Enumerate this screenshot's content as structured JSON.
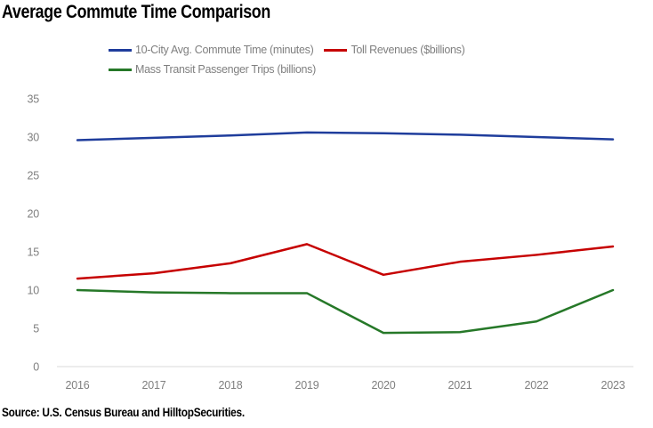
{
  "title": "Average Commute Time Comparison",
  "source_note": "Source: U.S. Census Bureau and HilltopSecurities.",
  "colors": {
    "commute_line": "#1f3d9c",
    "toll_line": "#c60000",
    "transit_line": "#267828",
    "axis_text": "#7f7f7f",
    "axis_line": "#d8d8d8",
    "title_text": "#000000"
  },
  "legend": [
    {
      "label": "10-City Avg. Commute Time (minutes)",
      "color": "#1f3d9c"
    },
    {
      "label": "Toll Revenues ($billions)",
      "color": "#c60000"
    },
    {
      "label": "Mass Transit Passenger Trips (billions)",
      "color": "#267828"
    }
  ],
  "chart_data": {
    "type": "line",
    "title": "Average Commute Time Comparison",
    "x": [
      "2016",
      "2017",
      "2018",
      "2019",
      "2020",
      "2021",
      "2022",
      "2023"
    ],
    "series": [
      {
        "name": "10-City Avg. Commute Time (minutes)",
        "color": "#1f3d9c",
        "values": [
          29.6,
          29.9,
          30.2,
          30.6,
          30.5,
          30.3,
          30.0,
          29.7
        ]
      },
      {
        "name": "Toll Revenues ($billions)",
        "color": "#c60000",
        "values": [
          11.5,
          12.2,
          13.5,
          16.0,
          12.0,
          13.7,
          14.6,
          15.7
        ]
      },
      {
        "name": "Mass Transit Passenger Trips (billions)",
        "color": "#267828",
        "values": [
          10.0,
          9.7,
          9.6,
          9.6,
          4.4,
          4.5,
          5.9,
          10.0
        ]
      }
    ],
    "xlabel": "",
    "ylabel": "",
    "ylim": [
      0,
      35
    ],
    "yticks": [
      0,
      5,
      10,
      15,
      20,
      25,
      30,
      35
    ],
    "grid": false,
    "legend_position": "top"
  }
}
